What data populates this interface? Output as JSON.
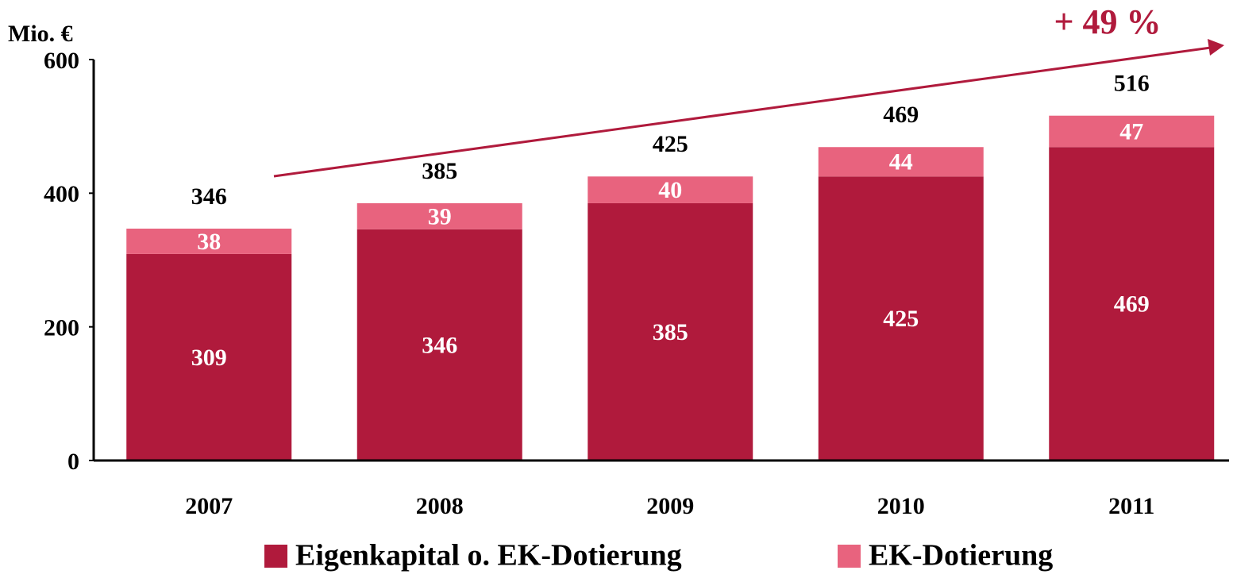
{
  "chart_data": {
    "type": "stacked_bar",
    "y_label": "Mio. €",
    "annotation": "+ 49 %",
    "categories": [
      "2007",
      "2008",
      "2009",
      "2010",
      "2011"
    ],
    "series": [
      {
        "name": "Eigenkapital o. EK-Dotierung",
        "color": "#b01a3c",
        "values": [
          309,
          346,
          385,
          425,
          469
        ]
      },
      {
        "name": "EK-Dotierung",
        "color": "#e8637e",
        "values": [
          38,
          39,
          40,
          44,
          47
        ]
      }
    ],
    "totals": [
      346,
      385,
      425,
      469,
      516
    ],
    "ylim": [
      0,
      600
    ],
    "yticks": [
      0,
      200,
      400,
      600
    ],
    "grid": false
  }
}
